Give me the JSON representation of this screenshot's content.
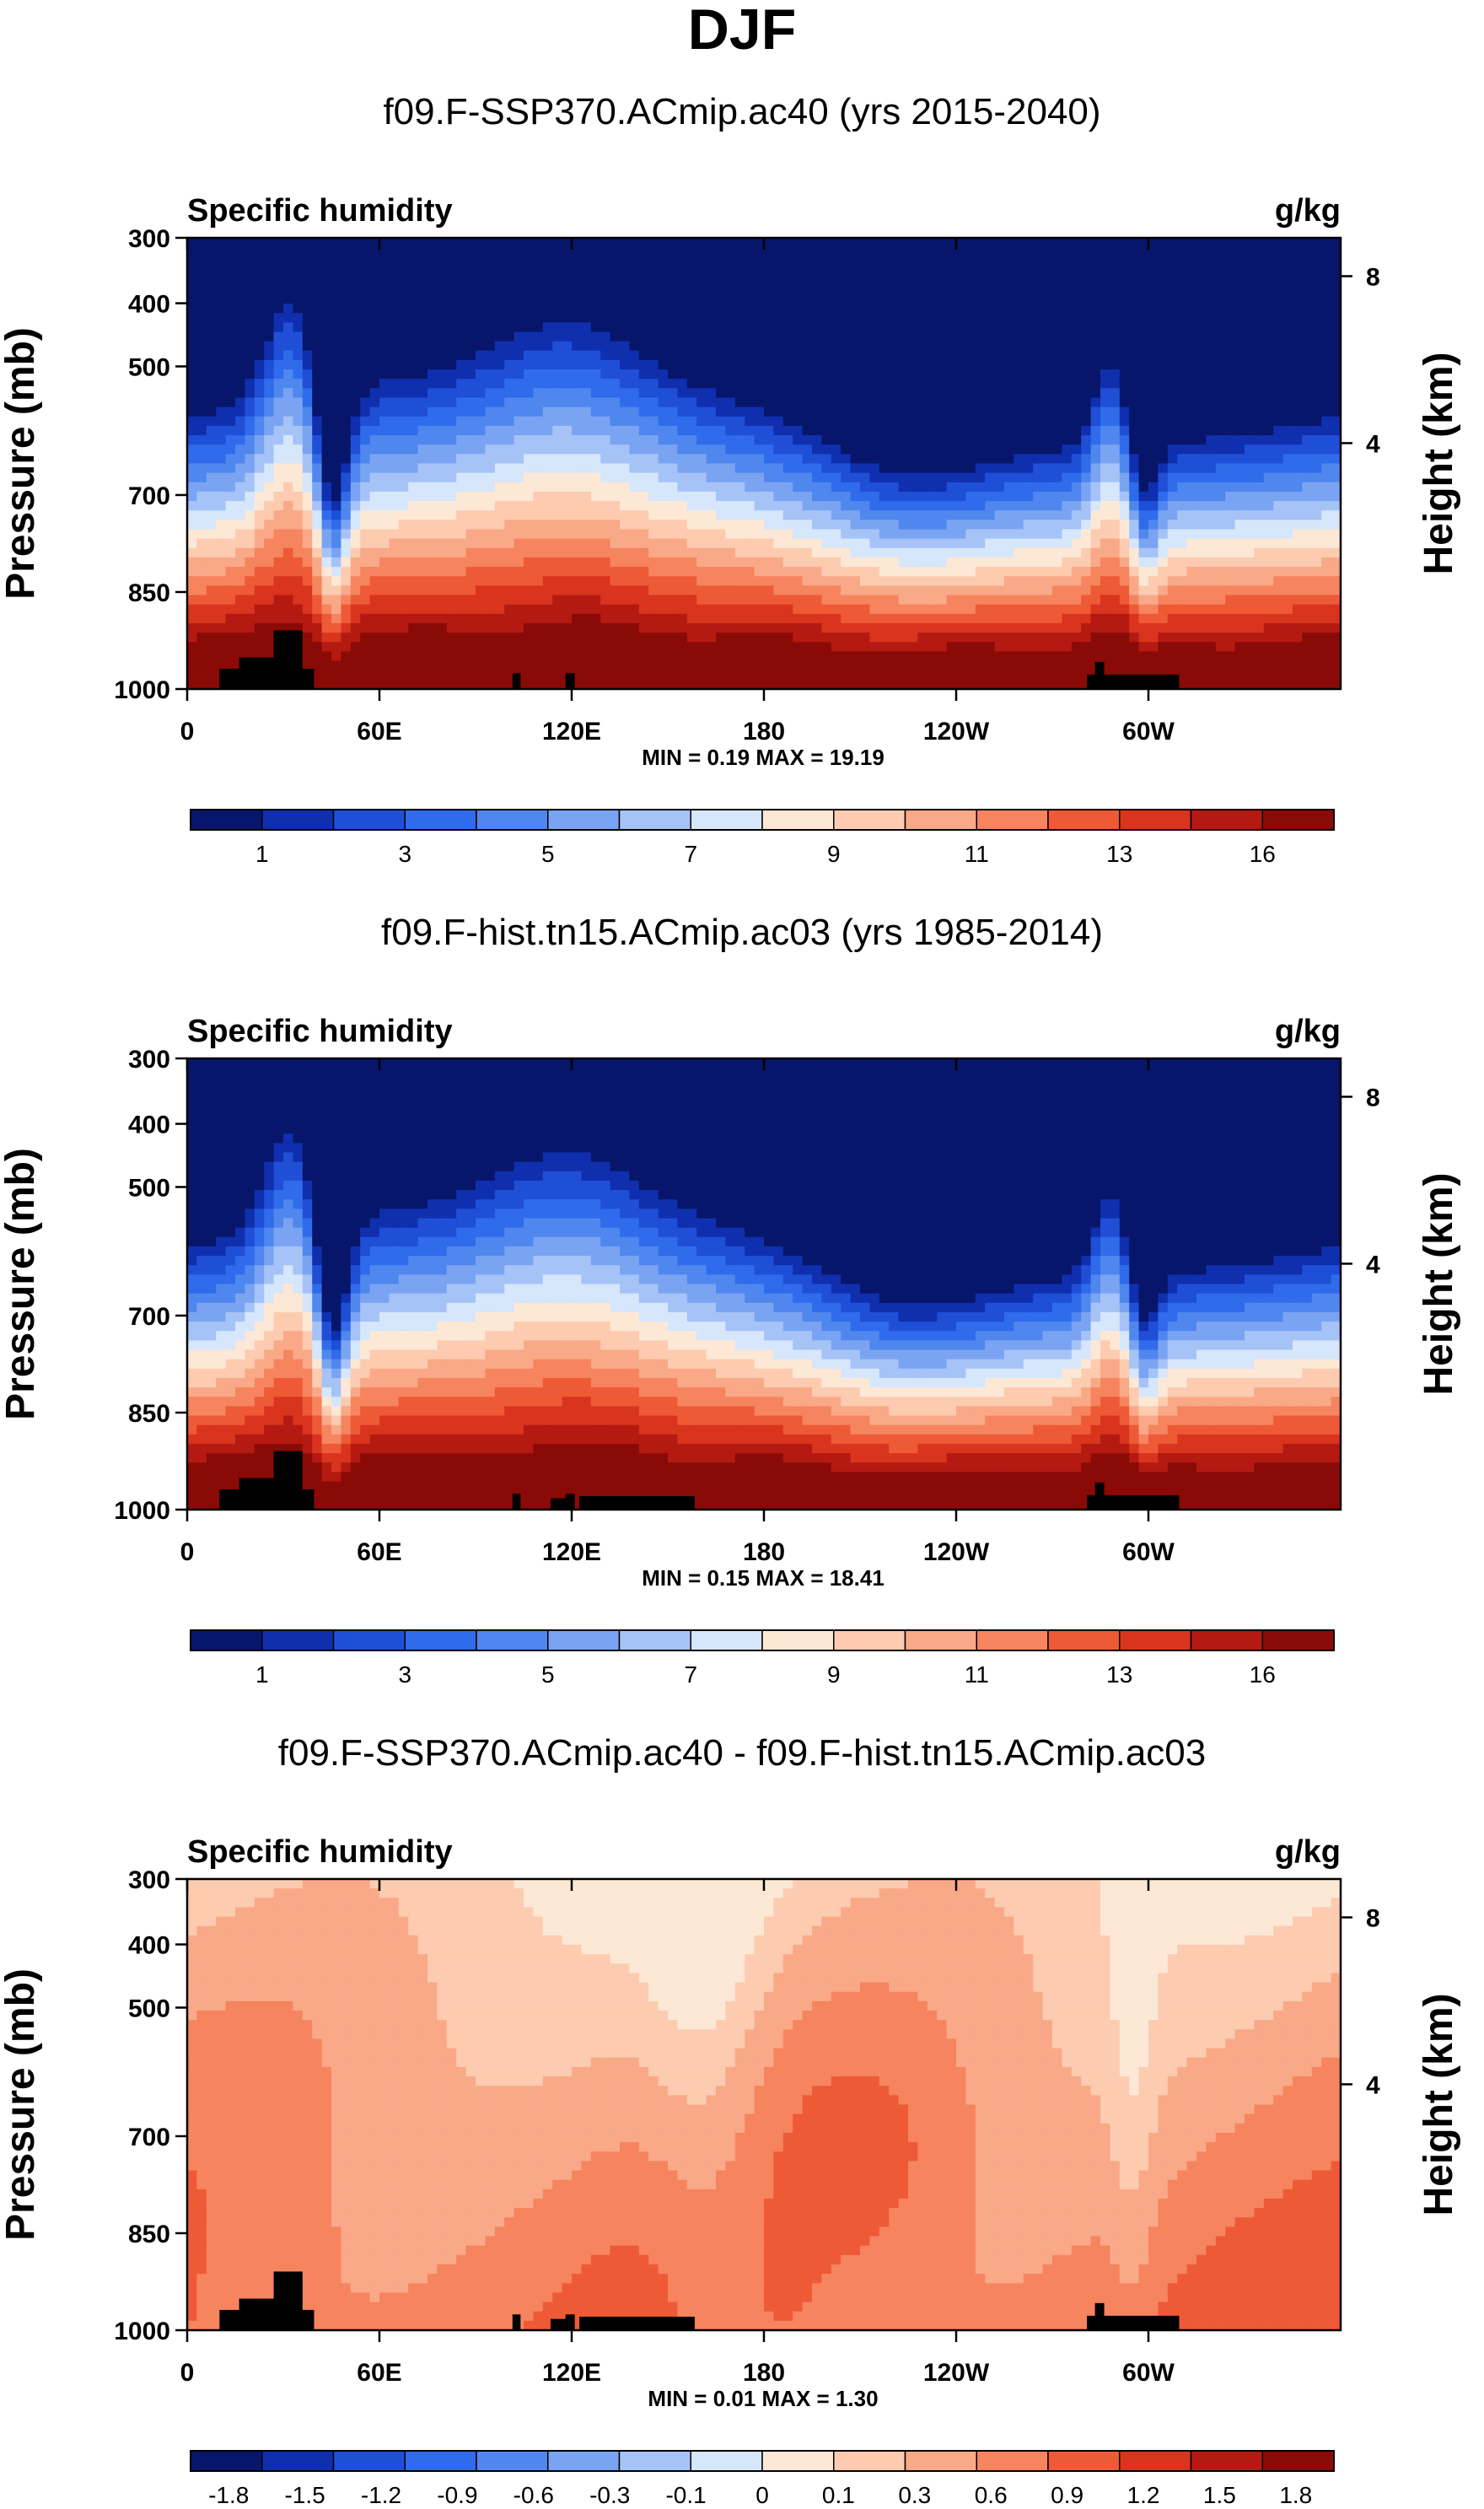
{
  "figure_title": "DJF",
  "chart_data": [
    {
      "type": "heatmap",
      "title": "f09.F-SSP370.ACmip.ac40 (yrs 2015-2040)",
      "left_label": "Specific humidity",
      "right_label": "g/kg",
      "ylabel": "Pressure (mb)",
      "ylabel_right": "Height (km)",
      "yticks": [
        "300",
        "400",
        "500",
        "700",
        "850",
        "1000"
      ],
      "yticks_right": [
        "8",
        "4"
      ],
      "xticks": [
        "0",
        "60E",
        "120E",
        "180",
        "120W",
        "60W"
      ],
      "min_max_text": "MIN =   0.19   MAX =  19.19",
      "colorbar_labels": [
        "1",
        "3",
        "5",
        "7",
        "9",
        "11",
        "13",
        "16"
      ],
      "field": "mean"
    },
    {
      "type": "heatmap",
      "title": "f09.F-hist.tn15.ACmip.ac03 (yrs 1985-2014)",
      "left_label": "Specific humidity",
      "right_label": "g/kg",
      "ylabel": "Pressure (mb)",
      "ylabel_right": "Height (km)",
      "yticks": [
        "300",
        "400",
        "500",
        "700",
        "850",
        "1000"
      ],
      "yticks_right": [
        "8",
        "4"
      ],
      "xticks": [
        "0",
        "60E",
        "120E",
        "180",
        "120W",
        "60W"
      ],
      "min_max_text": "MIN =   0.15   MAX =  18.41",
      "colorbar_labels": [
        "1",
        "3",
        "5",
        "7",
        "9",
        "11",
        "13",
        "16"
      ],
      "field": "mean"
    },
    {
      "type": "heatmap",
      "title": "f09.F-SSP370.ACmip.ac40 - f09.F-hist.tn15.ACmip.ac03",
      "left_label": "Specific humidity",
      "right_label": "g/kg",
      "ylabel": "Pressure (mb)",
      "ylabel_right": "Height (km)",
      "yticks": [
        "300",
        "400",
        "500",
        "700",
        "850",
        "1000"
      ],
      "yticks_right": [
        "8",
        "4"
      ],
      "xticks": [
        "0",
        "60E",
        "120E",
        "180",
        "120W",
        "60W"
      ],
      "min_max_text": "MIN =   0.01   MAX =   1.30",
      "colorbar_labels": [
        "-1.8",
        "-1.5",
        "-1.2",
        "-0.9",
        "-0.6",
        "-0.3",
        "-0.1",
        "0",
        "0.1",
        "0.3",
        "0.6",
        "0.9",
        "1.2",
        "1.5",
        "1.8"
      ],
      "field": "difference"
    }
  ],
  "palette_mean": [
    "#07166a",
    "#0f2fae",
    "#1f4fd6",
    "#2f6bea",
    "#4f87ee",
    "#7aa4f2",
    "#a6c3f7",
    "#d6e6fb",
    "#fde8d6",
    "#fccbb0",
    "#f9a987",
    "#f6845f",
    "#ee5a36",
    "#d9341d",
    "#b41a11",
    "#8a0a07"
  ],
  "palette_diff": [
    "#07166a",
    "#0f2fae",
    "#1f4fd6",
    "#2f6bea",
    "#4f87ee",
    "#7aa4f2",
    "#a6c3f7",
    "#d6e6fb",
    "#fde8d6",
    "#fccbb0",
    "#f9a987",
    "#f6845f",
    "#ee5a36",
    "#d9341d",
    "#b41a11",
    "#8a0a07"
  ]
}
